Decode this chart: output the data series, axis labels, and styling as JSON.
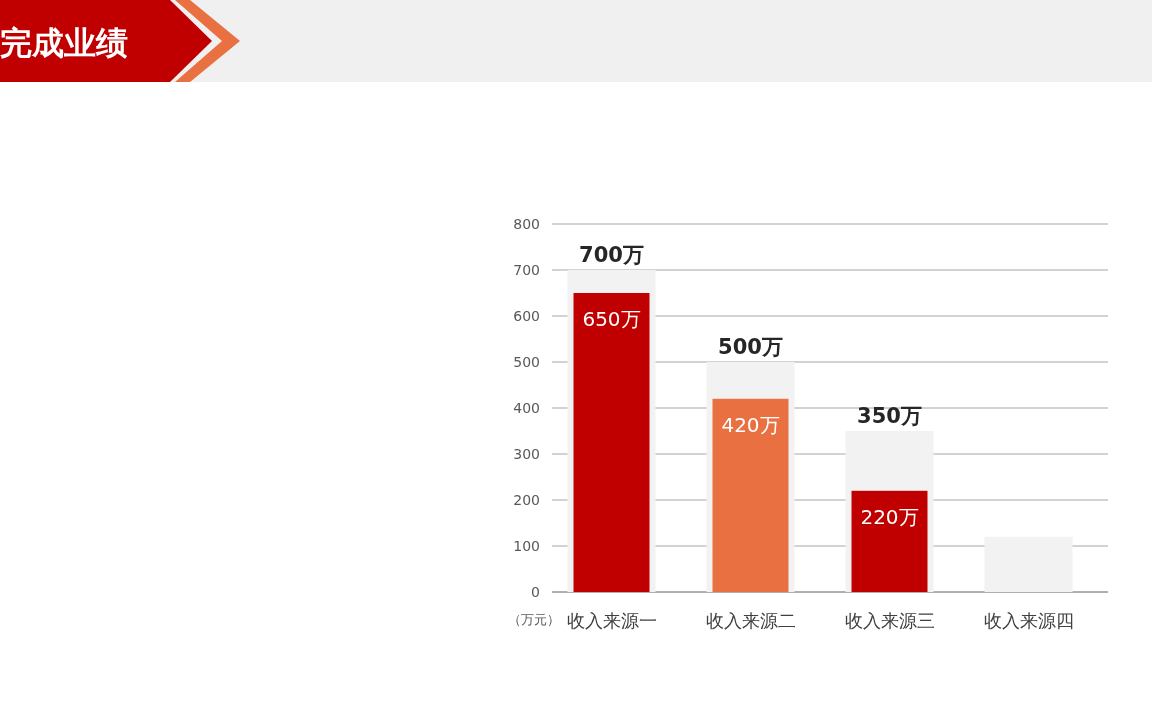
{
  "chart_data": {
    "type": "bar",
    "title": "完成业绩",
    "ylabel": "（万元）",
    "categories": [
      "收入来源一",
      "收入来源二",
      "收入来源三",
      "收入来源四"
    ],
    "series": [
      {
        "color": "#f2f2f2",
        "values": [
          700,
          500,
          350,
          120
        ],
        "value_labels": [
          "700万",
          "500万",
          "350万",
          null
        ]
      },
      {
        "colors": [
          "#c00000",
          "#e97040",
          "#c00000",
          null
        ],
        "values": [
          650,
          420,
          220,
          null
        ],
        "value_labels": [
          "650万",
          "420万",
          "220万",
          null
        ]
      }
    ],
    "ylim": [
      0,
      800
    ],
    "yticks": [
      0,
      100,
      200,
      300,
      400,
      500,
      600,
      700,
      800
    ],
    "grid": "y"
  }
}
